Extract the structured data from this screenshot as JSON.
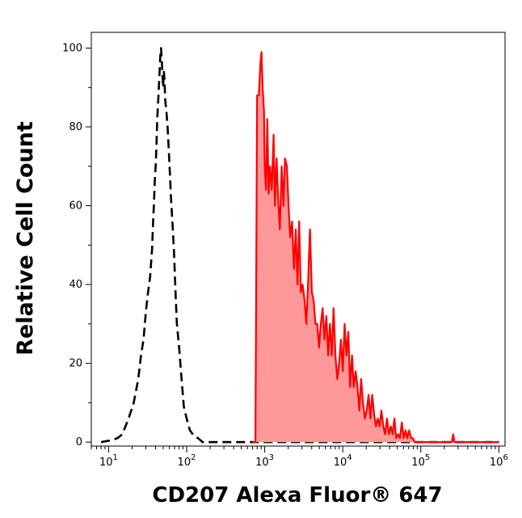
{
  "chart_data": {
    "type": "area",
    "title": "",
    "xlabel": "CD207 Alexa Fluor® 647",
    "ylabel": "Relative Cell Count",
    "x_scale": "log",
    "xlim": [
      6,
      1200000
    ],
    "ylim": [
      -1,
      104
    ],
    "y_ticks": [
      0,
      20,
      40,
      60,
      80,
      100
    ],
    "x_ticks": [
      {
        "value": 10,
        "base": "10",
        "exp": "1"
      },
      {
        "value": 100,
        "base": "10",
        "exp": "2"
      },
      {
        "value": 1000,
        "base": "10",
        "exp": "3"
      },
      {
        "value": 10000,
        "base": "10",
        "exp": "4"
      },
      {
        "value": 100000,
        "base": "10",
        "exp": "5"
      },
      {
        "value": 1000000,
        "base": "10",
        "exp": "6"
      }
    ],
    "grid": false,
    "legend": "none",
    "series": [
      {
        "role": "control",
        "style": "dashed",
        "color": "#000000",
        "points": [
          [
            8,
            0
          ],
          [
            11,
            0.5
          ],
          [
            13,
            1
          ],
          [
            15,
            2
          ],
          [
            18,
            6
          ],
          [
            21,
            10
          ],
          [
            24,
            16
          ],
          [
            26,
            22
          ],
          [
            28,
            26
          ],
          [
            30,
            33
          ],
          [
            32,
            38
          ],
          [
            34,
            42
          ],
          [
            36,
            49
          ],
          [
            37,
            55
          ],
          [
            38,
            60
          ],
          [
            39,
            66
          ],
          [
            40,
            70
          ],
          [
            41,
            75
          ],
          [
            42,
            82
          ],
          [
            43,
            86
          ],
          [
            44,
            90
          ],
          [
            45,
            94
          ],
          [
            46,
            98
          ],
          [
            47,
            100
          ],
          [
            48,
            97
          ],
          [
            49,
            93
          ],
          [
            50,
            90
          ],
          [
            51,
            94
          ],
          [
            52,
            92
          ],
          [
            53,
            87
          ],
          [
            55,
            84
          ],
          [
            57,
            80
          ],
          [
            59,
            74
          ],
          [
            61,
            68
          ],
          [
            63,
            62
          ],
          [
            66,
            55
          ],
          [
            69,
            48
          ],
          [
            72,
            38
          ],
          [
            75,
            30
          ],
          [
            80,
            24
          ],
          [
            86,
            16
          ],
          [
            92,
            9
          ],
          [
            100,
            6
          ],
          [
            110,
            3
          ],
          [
            125,
            1.5
          ],
          [
            140,
            1
          ],
          [
            160,
            0
          ],
          [
            200,
            0
          ],
          [
            300,
            0
          ],
          [
            1000,
            0
          ],
          [
            3000,
            0
          ],
          [
            10000,
            0
          ],
          [
            30000,
            0
          ],
          [
            100000,
            0
          ],
          [
            1000000,
            0
          ]
        ]
      },
      {
        "role": "sample",
        "style": "filled",
        "color": "#ff0000",
        "fill": "#ff9999",
        "points": [
          [
            700,
            0
          ],
          [
            760,
            0
          ],
          [
            800,
            88
          ],
          [
            840,
            88
          ],
          [
            880,
            96
          ],
          [
            910,
            99
          ],
          [
            940,
            90
          ],
          [
            980,
            84
          ],
          [
            1000,
            70
          ],
          [
            1040,
            64
          ],
          [
            1080,
            82
          ],
          [
            1120,
            63
          ],
          [
            1170,
            70
          ],
          [
            1230,
            64
          ],
          [
            1300,
            78
          ],
          [
            1350,
            60
          ],
          [
            1420,
            72
          ],
          [
            1500,
            60
          ],
          [
            1560,
            54
          ],
          [
            1650,
            70
          ],
          [
            1740,
            60
          ],
          [
            1820,
            72
          ],
          [
            1920,
            70
          ],
          [
            2020,
            60
          ],
          [
            2120,
            52
          ],
          [
            2240,
            56
          ],
          [
            2370,
            44
          ],
          [
            2500,
            54
          ],
          [
            2630,
            40
          ],
          [
            2760,
            56
          ],
          [
            2900,
            38
          ],
          [
            3060,
            40
          ],
          [
            3240,
            36
          ],
          [
            3410,
            30
          ],
          [
            3590,
            40
          ],
          [
            3800,
            54
          ],
          [
            4010,
            38
          ],
          [
            4230,
            36
          ],
          [
            4470,
            30
          ],
          [
            4710,
            30
          ],
          [
            4960,
            24
          ],
          [
            5230,
            30
          ],
          [
            5520,
            34
          ],
          [
            5830,
            26
          ],
          [
            6160,
            32
          ],
          [
            6500,
            22
          ],
          [
            6850,
            30
          ],
          [
            7230,
            22
          ],
          [
            7630,
            34
          ],
          [
            8050,
            22
          ],
          [
            8500,
            16
          ],
          [
            8980,
            20
          ],
          [
            9480,
            26
          ],
          [
            10000,
            18
          ],
          [
            10560,
            30
          ],
          [
            11150,
            22
          ],
          [
            11770,
            28
          ],
          [
            12430,
            14
          ],
          [
            13120,
            22
          ],
          [
            13850,
            14
          ],
          [
            14630,
            18
          ],
          [
            15440,
            14
          ],
          [
            16300,
            8
          ],
          [
            17200,
            16
          ],
          [
            18170,
            10
          ],
          [
            19200,
            6
          ],
          [
            20250,
            8
          ],
          [
            21400,
            12
          ],
          [
            22600,
            6
          ],
          [
            23850,
            12
          ],
          [
            25200,
            7
          ],
          [
            26600,
            4
          ],
          [
            28100,
            6
          ],
          [
            29700,
            4
          ],
          [
            31300,
            8
          ],
          [
            33100,
            4
          ],
          [
            34900,
            2
          ],
          [
            36900,
            6
          ],
          [
            39000,
            2
          ],
          [
            41200,
            4
          ],
          [
            43500,
            2
          ],
          [
            45900,
            6
          ],
          [
            48400,
            1
          ],
          [
            51200,
            2
          ],
          [
            54000,
            1
          ],
          [
            57100,
            5
          ],
          [
            60300,
            1
          ],
          [
            63700,
            3
          ],
          [
            67200,
            1
          ],
          [
            71000,
            3
          ],
          [
            75000,
            1
          ],
          [
            79200,
            1
          ],
          [
            83600,
            0
          ],
          [
            100000,
            0
          ],
          [
            150000,
            0
          ],
          [
            200000,
            0
          ],
          [
            250000,
            0
          ],
          [
            260000,
            2
          ],
          [
            270000,
            0
          ],
          [
            400000,
            0
          ],
          [
            700000,
            0
          ],
          [
            1000000,
            0
          ]
        ]
      }
    ]
  }
}
